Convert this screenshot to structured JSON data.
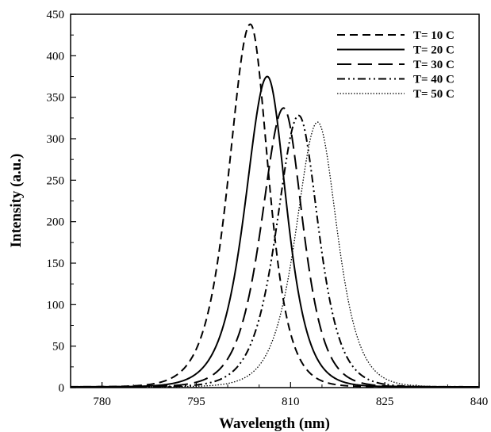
{
  "chart_data": {
    "type": "line",
    "title": "",
    "xlabel": "Wavelength (nm)",
    "ylabel": "Intensity (a.u.)",
    "xlim": [
      775,
      840
    ],
    "ylim": [
      0,
      450
    ],
    "xticks": [
      780,
      795,
      810,
      825,
      840
    ],
    "yticks": [
      0,
      50,
      100,
      150,
      200,
      250,
      300,
      350,
      400,
      450
    ],
    "grid": false,
    "legend_position": "top-right",
    "series": [
      {
        "name": "T= 10 C",
        "dash": "10,6",
        "peak_x": 803.6,
        "peak_y": 438,
        "width_left": 4.3,
        "width_right": 3.6,
        "baseline": 1
      },
      {
        "name": "T= 20 C",
        "dash": "",
        "peak_x": 806.3,
        "peak_y": 375,
        "width_left": 4.4,
        "width_right": 3.8,
        "baseline": 1
      },
      {
        "name": "T= 30 C",
        "dash": "18,8",
        "peak_x": 808.9,
        "peak_y": 337,
        "width_left": 4.4,
        "width_right": 3.8,
        "baseline": 1
      },
      {
        "name": "T= 40 C",
        "dash": "10,4,2,4,2,4",
        "peak_x": 811.3,
        "peak_y": 328,
        "width_left": 4.4,
        "width_right": 3.9,
        "baseline": 1
      },
      {
        "name": "T= 50 C",
        "dash": "1.5,2",
        "peak_x": 814.3,
        "peak_y": 320,
        "width_left": 4.3,
        "width_right": 3.9,
        "baseline": 1
      }
    ]
  }
}
